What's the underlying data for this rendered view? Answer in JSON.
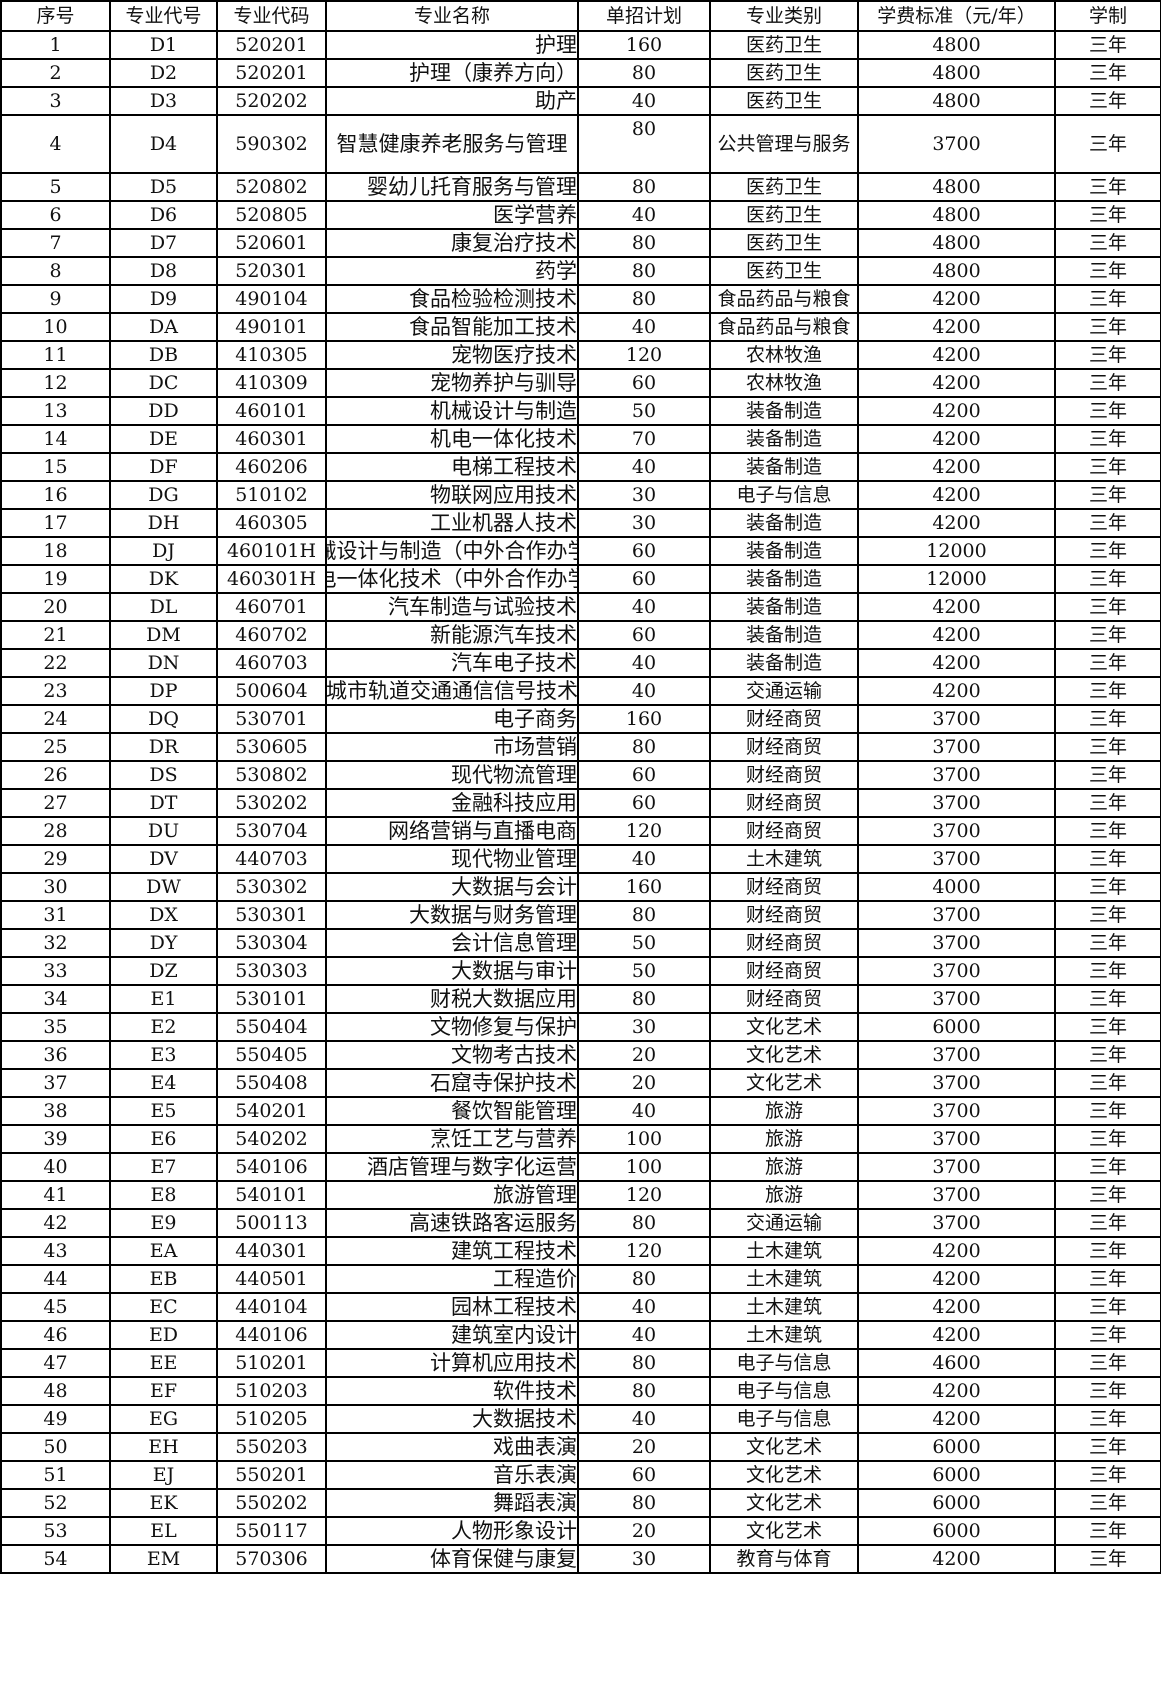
{
  "table": {
    "headers": [
      "序号",
      "专业代号",
      "专业代码",
      "专业名称",
      "单招计划",
      "专业类别",
      "学费标准（元/年）",
      "学制"
    ],
    "rows": [
      [
        "1",
        "D1",
        "520201",
        "护理",
        "160",
        "医药卫生",
        "4800",
        "三年"
      ],
      [
        "2",
        "D2",
        "520201",
        "护理（康养方向）",
        "80",
        "医药卫生",
        "4800",
        "三年"
      ],
      [
        "3",
        "D3",
        "520202",
        "助产",
        "40",
        "医药卫生",
        "4800",
        "三年"
      ],
      [
        "4",
        "D4",
        "590302",
        "智慧健康养老服务与管理",
        "80",
        "公共管理与服务",
        "3700",
        "三年"
      ],
      [
        "5",
        "D5",
        "520802",
        "婴幼儿托育服务与管理",
        "80",
        "医药卫生",
        "4800",
        "三年"
      ],
      [
        "6",
        "D6",
        "520805",
        "医学营养",
        "40",
        "医药卫生",
        "4800",
        "三年"
      ],
      [
        "7",
        "D7",
        "520601",
        "康复治疗技术",
        "80",
        "医药卫生",
        "4800",
        "三年"
      ],
      [
        "8",
        "D8",
        "520301",
        "药学",
        "80",
        "医药卫生",
        "4800",
        "三年"
      ],
      [
        "9",
        "D9",
        "490104",
        "食品检验检测技术",
        "80",
        "食品药品与粮食",
        "4200",
        "三年"
      ],
      [
        "10",
        "DA",
        "490101",
        "食品智能加工技术",
        "40",
        "食品药品与粮食",
        "4200",
        "三年"
      ],
      [
        "11",
        "DB",
        "410305",
        "宠物医疗技术",
        "120",
        "农林牧渔",
        "4200",
        "三年"
      ],
      [
        "12",
        "DC",
        "410309",
        "宠物养护与驯导",
        "60",
        "农林牧渔",
        "4200",
        "三年"
      ],
      [
        "13",
        "DD",
        "460101",
        "机械设计与制造",
        "50",
        "装备制造",
        "4200",
        "三年"
      ],
      [
        "14",
        "DE",
        "460301",
        "机电一体化技术",
        "70",
        "装备制造",
        "4200",
        "三年"
      ],
      [
        "15",
        "DF",
        "460206",
        "电梯工程技术",
        "40",
        "装备制造",
        "4200",
        "三年"
      ],
      [
        "16",
        "DG",
        "510102",
        "物联网应用技术",
        "30",
        "电子与信息",
        "4200",
        "三年"
      ],
      [
        "17",
        "DH",
        "460305",
        "工业机器人技术",
        "30",
        "装备制造",
        "4200",
        "三年"
      ],
      [
        "18",
        "DJ",
        "460101H",
        "机械设计与制造（中外合作办学）",
        "60",
        "装备制造",
        "12000",
        "三年"
      ],
      [
        "19",
        "DK",
        "460301H",
        "机电一体化技术（中外合作办学）",
        "60",
        "装备制造",
        "12000",
        "三年"
      ],
      [
        "20",
        "DL",
        "460701",
        "汽车制造与试验技术",
        "40",
        "装备制造",
        "4200",
        "三年"
      ],
      [
        "21",
        "DM",
        "460702",
        "新能源汽车技术",
        "60",
        "装备制造",
        "4200",
        "三年"
      ],
      [
        "22",
        "DN",
        "460703",
        "汽车电子技术",
        "40",
        "装备制造",
        "4200",
        "三年"
      ],
      [
        "23",
        "DP",
        "500604",
        "城市轨道交通通信信号技术",
        "40",
        "交通运输",
        "4200",
        "三年"
      ],
      [
        "24",
        "DQ",
        "530701",
        "电子商务",
        "160",
        "财经商贸",
        "3700",
        "三年"
      ],
      [
        "25",
        "DR",
        "530605",
        "市场营销",
        "80",
        "财经商贸",
        "3700",
        "三年"
      ],
      [
        "26",
        "DS",
        "530802",
        "现代物流管理",
        "60",
        "财经商贸",
        "3700",
        "三年"
      ],
      [
        "27",
        "DT",
        "530202",
        "金融科技应用",
        "60",
        "财经商贸",
        "3700",
        "三年"
      ],
      [
        "28",
        "DU",
        "530704",
        "网络营销与直播电商",
        "120",
        "财经商贸",
        "3700",
        "三年"
      ],
      [
        "29",
        "DV",
        "440703",
        "现代物业管理",
        "40",
        "土木建筑",
        "3700",
        "三年"
      ],
      [
        "30",
        "DW",
        "530302",
        "大数据与会计",
        "160",
        "财经商贸",
        "4000",
        "三年"
      ],
      [
        "31",
        "DX",
        "530301",
        "大数据与财务管理",
        "80",
        "财经商贸",
        "3700",
        "三年"
      ],
      [
        "32",
        "DY",
        "530304",
        "会计信息管理",
        "50",
        "财经商贸",
        "3700",
        "三年"
      ],
      [
        "33",
        "DZ",
        "530303",
        "大数据与审计",
        "50",
        "财经商贸",
        "3700",
        "三年"
      ],
      [
        "34",
        "E1",
        "530101",
        "财税大数据应用",
        "80",
        "财经商贸",
        "3700",
        "三年"
      ],
      [
        "35",
        "E2",
        "550404",
        "文物修复与保护",
        "30",
        "文化艺术",
        "6000",
        "三年"
      ],
      [
        "36",
        "E3",
        "550405",
        "文物考古技术",
        "20",
        "文化艺术",
        "3700",
        "三年"
      ],
      [
        "37",
        "E4",
        "550408",
        "石窟寺保护技术",
        "20",
        "文化艺术",
        "3700",
        "三年"
      ],
      [
        "38",
        "E5",
        "540201",
        "餐饮智能管理",
        "40",
        "旅游",
        "3700",
        "三年"
      ],
      [
        "39",
        "E6",
        "540202",
        "烹饪工艺与营养",
        "100",
        "旅游",
        "3700",
        "三年"
      ],
      [
        "40",
        "E7",
        "540106",
        "酒店管理与数字化运营",
        "100",
        "旅游",
        "3700",
        "三年"
      ],
      [
        "41",
        "E8",
        "540101",
        "旅游管理",
        "120",
        "旅游",
        "3700",
        "三年"
      ],
      [
        "42",
        "E9",
        "500113",
        "高速铁路客运服务",
        "80",
        "交通运输",
        "3700",
        "三年"
      ],
      [
        "43",
        "EA",
        "440301",
        "建筑工程技术",
        "120",
        "土木建筑",
        "4200",
        "三年"
      ],
      [
        "44",
        "EB",
        "440501",
        "工程造价",
        "80",
        "土木建筑",
        "4200",
        "三年"
      ],
      [
        "45",
        "EC",
        "440104",
        "园林工程技术",
        "40",
        "土木建筑",
        "4200",
        "三年"
      ],
      [
        "46",
        "ED",
        "440106",
        "建筑室内设计",
        "40",
        "土木建筑",
        "4200",
        "三年"
      ],
      [
        "47",
        "EE",
        "510201",
        "计算机应用技术",
        "80",
        "电子与信息",
        "4600",
        "三年"
      ],
      [
        "48",
        "EF",
        "510203",
        "软件技术",
        "80",
        "电子与信息",
        "4200",
        "三年"
      ],
      [
        "49",
        "EG",
        "510205",
        "大数据技术",
        "40",
        "电子与信息",
        "4200",
        "三年"
      ],
      [
        "50",
        "EH",
        "550203",
        "戏曲表演",
        "20",
        "文化艺术",
        "6000",
        "三年"
      ],
      [
        "51",
        "EJ",
        "550201",
        "音乐表演",
        "60",
        "文化艺术",
        "6000",
        "三年"
      ],
      [
        "52",
        "EK",
        "550202",
        "舞蹈表演",
        "80",
        "文化艺术",
        "6000",
        "三年"
      ],
      [
        "53",
        "EL",
        "550117",
        "人物形象设计",
        "20",
        "文化艺术",
        "6000",
        "三年"
      ],
      [
        "54",
        "EM",
        "570306",
        "体育保健与康复",
        "30",
        "教育与体育",
        "4200",
        "三年"
      ]
    ]
  }
}
